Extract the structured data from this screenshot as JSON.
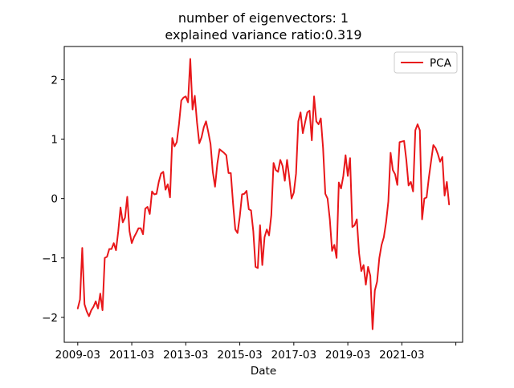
{
  "chart_data": {
    "type": "line",
    "title_line1": "number of eigenvectors: 1",
    "title_line2": "explained variance ratio:0.319",
    "xlabel": "Date",
    "ylabel": "",
    "x_tick_labels": [
      "2009-03",
      "2011-03",
      "2013-03",
      "2015-03",
      "2017-03",
      "2019-03",
      "2021-03",
      ""
    ],
    "x_tick_dates": [
      "2009-03",
      "2011-03",
      "2013-03",
      "2015-03",
      "2017-03",
      "2019-03",
      "2021-03",
      "2023-03"
    ],
    "xlim": [
      "2008-09",
      "2023-06"
    ],
    "ylim": [
      -2.42,
      2.56
    ],
    "y_ticks": [
      -2,
      -1,
      0,
      1,
      2
    ],
    "grid": false,
    "legend_position": "top-right",
    "series": [
      {
        "name": "PCA",
        "color": "#e8171a",
        "x": [
          "2009-03",
          "2009-04",
          "2009-05",
          "2009-06",
          "2009-07",
          "2009-08",
          "2009-09",
          "2009-10",
          "2009-11",
          "2009-12",
          "2010-01",
          "2010-02",
          "2010-03",
          "2010-04",
          "2010-05",
          "2010-06",
          "2010-07",
          "2010-08",
          "2010-09",
          "2010-10",
          "2010-11",
          "2010-12",
          "2011-01",
          "2011-02",
          "2011-03",
          "2011-04",
          "2011-05",
          "2011-06",
          "2011-07",
          "2011-08",
          "2011-09",
          "2011-10",
          "2011-11",
          "2011-12",
          "2012-01",
          "2012-02",
          "2012-03",
          "2012-04",
          "2012-05",
          "2012-06",
          "2012-07",
          "2012-08",
          "2012-09",
          "2012-10",
          "2012-11",
          "2012-12",
          "2013-01",
          "2013-02",
          "2013-03",
          "2013-04",
          "2013-05",
          "2013-06",
          "2013-07",
          "2013-08",
          "2013-09",
          "2013-10",
          "2013-11",
          "2013-12",
          "2014-01",
          "2014-02",
          "2014-03",
          "2014-04",
          "2014-05",
          "2014-06",
          "2014-07",
          "2014-08",
          "2014-09",
          "2014-10",
          "2014-11",
          "2014-12",
          "2015-01",
          "2015-02",
          "2015-03",
          "2015-04",
          "2015-05",
          "2015-06",
          "2015-07",
          "2015-08",
          "2015-09",
          "2015-10",
          "2015-11",
          "2015-12",
          "2016-01",
          "2016-02",
          "2016-03",
          "2016-04",
          "2016-05",
          "2016-06",
          "2016-07",
          "2016-08",
          "2016-09",
          "2016-10",
          "2016-11",
          "2016-12",
          "2017-01",
          "2017-02",
          "2017-03",
          "2017-04",
          "2017-05",
          "2017-06",
          "2017-07",
          "2017-08",
          "2017-09",
          "2017-10",
          "2017-11",
          "2017-12",
          "2018-01",
          "2018-02",
          "2018-03",
          "2018-04",
          "2018-05",
          "2018-06",
          "2018-07",
          "2018-08",
          "2018-09",
          "2018-10",
          "2018-11",
          "2018-12",
          "2019-01",
          "2019-02",
          "2019-03",
          "2019-04",
          "2019-05",
          "2019-06",
          "2019-07",
          "2019-08",
          "2019-09",
          "2019-10",
          "2019-11",
          "2019-12",
          "2020-01",
          "2020-02",
          "2020-03",
          "2020-04",
          "2020-05",
          "2020-06",
          "2020-07",
          "2020-08",
          "2020-09",
          "2020-10",
          "2020-11",
          "2020-12",
          "2021-01",
          "2021-02",
          "2021-03",
          "2021-04",
          "2021-05",
          "2021-06",
          "2021-07",
          "2021-08",
          "2021-09",
          "2021-10",
          "2021-11",
          "2021-12",
          "2022-01",
          "2022-02",
          "2022-03",
          "2022-04",
          "2022-05",
          "2022-06",
          "2022-07",
          "2022-08",
          "2022-09",
          "2022-10",
          "2022-11",
          "2022-12"
        ],
        "y": [
          -1.85,
          -1.7,
          -0.83,
          -1.78,
          -1.9,
          -1.98,
          -1.88,
          -1.82,
          -1.73,
          -1.85,
          -1.6,
          -1.88,
          -1.0,
          -0.98,
          -0.85,
          -0.85,
          -0.75,
          -0.87,
          -0.55,
          -0.15,
          -0.4,
          -0.32,
          0.03,
          -0.55,
          -0.75,
          -0.65,
          -0.58,
          -0.5,
          -0.5,
          -0.6,
          -0.17,
          -0.14,
          -0.26,
          0.12,
          0.07,
          0.08,
          0.28,
          0.42,
          0.45,
          0.15,
          0.24,
          0.02,
          1.02,
          0.88,
          0.95,
          1.26,
          1.65,
          1.7,
          1.72,
          1.62,
          2.35,
          1.5,
          1.73,
          1.28,
          0.93,
          1.03,
          1.2,
          1.3,
          1.12,
          0.92,
          0.45,
          0.2,
          0.58,
          0.83,
          0.8,
          0.77,
          0.73,
          0.43,
          0.43,
          -0.08,
          -0.52,
          -0.58,
          -0.3,
          0.07,
          0.08,
          0.13,
          -0.18,
          -0.2,
          -0.55,
          -1.15,
          -1.17,
          -0.45,
          -1.12,
          -0.65,
          -0.52,
          -0.62,
          -0.28,
          0.6,
          0.48,
          0.45,
          0.65,
          0.55,
          0.3,
          0.65,
          0.35,
          0.0,
          0.1,
          0.42,
          1.3,
          1.45,
          1.1,
          1.28,
          1.45,
          1.48,
          0.98,
          1.72,
          1.3,
          1.25,
          1.35,
          0.85,
          0.08,
          0.0,
          -0.35,
          -0.88,
          -0.78,
          -1.0,
          0.27,
          0.17,
          0.38,
          0.73,
          0.38,
          0.68,
          -0.48,
          -0.45,
          -0.35,
          -0.92,
          -1.22,
          -1.12,
          -1.45,
          -1.15,
          -1.3,
          -2.2,
          -1.55,
          -1.4,
          -1.0,
          -0.78,
          -0.65,
          -0.4,
          -0.05,
          0.77,
          0.48,
          0.41,
          0.23,
          0.95,
          0.96,
          0.97,
          0.65,
          0.22,
          0.28,
          0.12,
          1.15,
          1.25,
          1.15,
          -0.35,
          0.0,
          0.02,
          0.35,
          0.63,
          0.9,
          0.85,
          0.75,
          0.62,
          0.7,
          0.05,
          0.28,
          -0.1
        ]
      }
    ]
  }
}
